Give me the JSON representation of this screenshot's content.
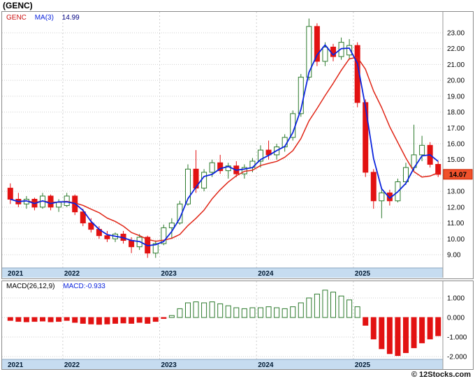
{
  "title": "(GENC)",
  "copyright": "© 12Stocks.com",
  "colors": {
    "up": "#2c7a2c",
    "down": "#e21212",
    "grid": "#cfcfcf",
    "band": "#c6dcf0",
    "band_edge": "#8ba6c1",
    "axis_text": "#000000",
    "year_text": "#001a33",
    "last_box_bg": "#f0512b",
    "last_box_border": "#cc2200"
  },
  "main_chart": {
    "legend": [
      {
        "label": "GENC",
        "color": "#cc1111"
      },
      {
        "label": "MA(3)",
        "color": "#0b24dd"
      },
      {
        "label": "14.99",
        "color": "#000080"
      }
    ],
    "last_price": "14.07",
    "y_ticks": [
      23,
      22,
      21,
      20,
      19,
      18,
      17,
      16,
      15,
      14,
      13,
      12,
      11,
      10,
      9
    ],
    "x_ticks": [
      {
        "label": "2021",
        "index": 0
      },
      {
        "label": "2022",
        "index": 7
      },
      {
        "label": "2023",
        "index": 19
      },
      {
        "label": "2024",
        "index": 31
      },
      {
        "label": "2025",
        "index": 43
      }
    ]
  },
  "macd": {
    "legend_left": "MACD(26,12,9)",
    "legend_value": "MACD:-0.933",
    "value_color": "#0b24dd",
    "y_ticks": [
      1,
      0,
      -1,
      -2
    ]
  },
  "chart_data": [
    {
      "type": "candlestick",
      "title": "GENC monthly candlestick chart with MA(3) overlay",
      "ylim": [
        8.6,
        24.3
      ],
      "x": [
        "2021-06",
        "2021-07",
        "2021-08",
        "2021-09",
        "2021-10",
        "2021-11",
        "2021-12",
        "2022-01",
        "2022-02",
        "2022-03",
        "2022-04",
        "2022-05",
        "2022-06",
        "2022-07",
        "2022-08",
        "2022-09",
        "2022-10",
        "2022-11",
        "2022-12",
        "2023-01",
        "2023-02",
        "2023-03",
        "2023-04",
        "2023-05",
        "2023-06",
        "2023-07",
        "2023-08",
        "2023-09",
        "2023-10",
        "2023-11",
        "2023-12",
        "2024-01",
        "2024-02",
        "2024-03",
        "2024-04",
        "2024-05",
        "2024-06",
        "2024-07",
        "2024-08",
        "2024-09",
        "2024-10",
        "2024-11",
        "2024-12",
        "2025-01",
        "2025-02",
        "2025-03",
        "2025-04",
        "2025-05",
        "2025-06",
        "2025-07",
        "2025-08",
        "2025-09",
        "2025-10",
        "2025-11"
      ],
      "ohlc": [
        [
          13.2,
          13.5,
          12.2,
          12.5
        ],
        [
          12.5,
          12.9,
          12.0,
          12.2
        ],
        [
          12.2,
          12.7,
          11.9,
          12.5
        ],
        [
          12.5,
          12.6,
          11.8,
          12.0
        ],
        [
          12.0,
          12.9,
          11.9,
          12.7
        ],
        [
          12.7,
          12.8,
          11.8,
          12.0
        ],
        [
          12.0,
          12.5,
          11.7,
          12.3
        ],
        [
          12.1,
          12.9,
          12.0,
          12.7
        ],
        [
          12.7,
          12.8,
          11.5,
          11.7
        ],
        [
          11.7,
          11.9,
          10.8,
          11.0
        ],
        [
          11.0,
          11.3,
          10.4,
          10.6
        ],
        [
          10.6,
          10.8,
          10.0,
          10.2
        ],
        [
          10.2,
          10.5,
          9.8,
          10.0
        ],
        [
          10.0,
          10.4,
          9.8,
          10.3
        ],
        [
          10.3,
          10.5,
          9.7,
          9.9
        ],
        [
          9.9,
          10.1,
          9.1,
          9.5
        ],
        [
          9.5,
          10.3,
          9.3,
          10.1
        ],
        [
          10.1,
          10.2,
          8.8,
          9.1
        ],
        [
          9.1,
          9.9,
          8.8,
          9.7
        ],
        [
          9.7,
          10.9,
          9.6,
          10.7
        ],
        [
          10.7,
          11.3,
          10.0,
          11.0
        ],
        [
          11.0,
          12.4,
          10.9,
          12.2
        ],
        [
          12.2,
          14.7,
          12.1,
          14.4
        ],
        [
          14.4,
          15.6,
          12.9,
          13.2
        ],
        [
          13.2,
          14.4,
          13.0,
          14.2
        ],
        [
          14.2,
          15.0,
          13.9,
          14.8
        ],
        [
          14.8,
          15.3,
          14.1,
          14.3
        ],
        [
          14.3,
          14.8,
          13.8,
          14.6
        ],
        [
          14.6,
          14.9,
          13.9,
          14.1
        ],
        [
          14.1,
          14.7,
          13.8,
          14.5
        ],
        [
          14.5,
          15.1,
          14.2,
          14.9
        ],
        [
          14.9,
          15.9,
          14.5,
          15.6
        ],
        [
          15.6,
          16.2,
          15.0,
          15.3
        ],
        [
          15.3,
          16.0,
          15.0,
          15.8
        ],
        [
          15.8,
          16.6,
          15.5,
          16.4
        ],
        [
          16.4,
          18.1,
          16.2,
          17.9
        ],
        [
          17.9,
          20.4,
          17.7,
          20.2
        ],
        [
          20.2,
          23.9,
          20.0,
          23.4
        ],
        [
          23.4,
          23.6,
          20.9,
          21.2
        ],
        [
          21.2,
          22.4,
          20.9,
          22.1
        ],
        [
          22.1,
          22.3,
          21.2,
          21.5
        ],
        [
          21.5,
          22.7,
          21.3,
          22.4
        ],
        [
          21.6,
          22.6,
          21.3,
          22.2
        ],
        [
          22.2,
          22.4,
          18.3,
          18.6
        ],
        [
          18.6,
          18.8,
          13.9,
          14.2
        ],
        [
          14.2,
          14.4,
          11.9,
          12.4
        ],
        [
          12.4,
          13.2,
          11.3,
          12.9
        ],
        [
          12.9,
          13.1,
          12.1,
          12.4
        ],
        [
          12.4,
          13.8,
          12.3,
          13.6
        ],
        [
          13.6,
          14.8,
          13.4,
          14.5
        ],
        [
          14.5,
          17.2,
          14.3,
          15.3
        ],
        [
          15.3,
          16.5,
          14.9,
          15.9
        ],
        [
          15.9,
          16.1,
          14.5,
          14.7
        ],
        [
          14.7,
          14.9,
          13.9,
          14.07
        ]
      ],
      "overlays": [
        {
          "name": "MA(3)",
          "type": "sma",
          "window": 3,
          "color": "#0b24dd"
        },
        {
          "name": "GENC-trend",
          "type": "sma",
          "window": 8,
          "color": "#e02617"
        }
      ]
    },
    {
      "type": "bar",
      "title": "MACD(26,12,9) histogram",
      "ylim": [
        -2.2,
        1.6
      ],
      "x_same_as_series": 0,
      "values": [
        -0.15,
        -0.2,
        -0.22,
        -0.2,
        -0.18,
        -0.22,
        -0.2,
        -0.15,
        -0.25,
        -0.3,
        -0.33,
        -0.35,
        -0.33,
        -0.3,
        -0.28,
        -0.3,
        -0.25,
        -0.3,
        -0.2,
        -0.05,
        0.1,
        0.45,
        0.75,
        0.8,
        0.75,
        0.8,
        0.7,
        0.6,
        0.5,
        0.45,
        0.5,
        0.5,
        0.55,
        0.5,
        0.45,
        0.55,
        0.75,
        1.0,
        1.2,
        1.4,
        1.3,
        1.1,
        0.9,
        0.55,
        -0.4,
        -1.1,
        -1.6,
        -1.85,
        -1.95,
        -1.8,
        -1.55,
        -1.3,
        -1.1,
        -0.933
      ]
    }
  ]
}
